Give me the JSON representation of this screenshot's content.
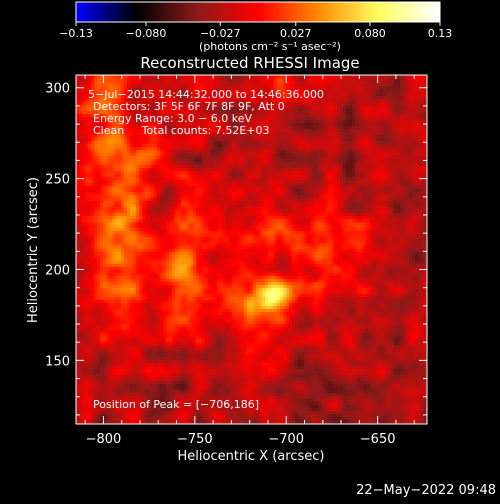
{
  "chart_data": {
    "type": "heatmap",
    "title": "Reconstructed RHESSI Image",
    "xlabel": "Heliocentric X (arcsec)",
    "ylabel": "Heliocentric Y (arcsec)",
    "xlim": [
      -815,
      -623
    ],
    "ylim": [
      115,
      307
    ],
    "x_ticks": [
      -800,
      -750,
      -700,
      -650
    ],
    "y_ticks": [
      150,
      200,
      250,
      300
    ],
    "x_tick_labels": [
      "−800",
      "−750",
      "−700",
      "−650"
    ],
    "y_tick_labels": [
      "150",
      "200",
      "250",
      "300"
    ],
    "colorbar": {
      "range": [
        -0.13,
        0.13
      ],
      "tick_values": [
        -0.13,
        -0.08,
        -0.027,
        0.027,
        0.08,
        0.13
      ],
      "tick_labels": [
        "−0.13",
        "−0.080",
        "−0.027",
        "0.027",
        "0.080",
        "0.13"
      ],
      "units_label": "(photons cm⁻² s⁻¹ asec⁻²)"
    },
    "annotations": [
      "5−Jul−2015 14:44:32.000 to 14:46:36.000",
      "Detectors: 3F 5F 6F 7F 8F 9F, Att 0",
      "Energy Range: 3.0 − 6.0 keV",
      "Clean     Total counts: 7.52E+03"
    ],
    "peak_label": "Position of Peak = [−706,186]",
    "peak_position": [
      -706,
      186
    ],
    "peak_value": 0.13,
    "colormap": [
      "#0000ff",
      "#000000",
      "#8b1a1a",
      "#ff0000",
      "#ff8c00",
      "#ffff60",
      "#ffffff"
    ],
    "sources": [
      {
        "x": -707,
        "y": 186,
        "sx": 8,
        "sy": 8,
        "amp": 0.13
      },
      {
        "x": -705,
        "y": 218,
        "sx": 12,
        "sy": 9,
        "amp": 0.045
      },
      {
        "x": -755,
        "y": 200,
        "sx": 9,
        "sy": 26,
        "amp": 0.06
      },
      {
        "x": -790,
        "y": 215,
        "sx": 11,
        "sy": 38,
        "amp": 0.065
      },
      {
        "x": -800,
        "y": 270,
        "sx": 12,
        "sy": 20,
        "amp": 0.04
      },
      {
        "x": -772,
        "y": 268,
        "sx": 9,
        "sy": 10,
        "amp": 0.03
      },
      {
        "x": -728,
        "y": 200,
        "sx": 7,
        "sy": 22,
        "amp": 0.04
      },
      {
        "x": -678,
        "y": 210,
        "sx": 7,
        "sy": 22,
        "amp": 0.055
      },
      {
        "x": -660,
        "y": 212,
        "sx": 6,
        "sy": 16,
        "amp": 0.035
      },
      {
        "x": -720,
        "y": 165,
        "sx": 8,
        "sy": 12,
        "amp": 0.03
      },
      {
        "x": -700,
        "y": 300,
        "sx": 10,
        "sy": 8,
        "amp": 0.028
      },
      {
        "x": -800,
        "y": 300,
        "sx": 14,
        "sy": 8,
        "amp": 0.03
      }
    ]
  },
  "footer": {
    "timestamp": "22−May−2022 09:48"
  }
}
